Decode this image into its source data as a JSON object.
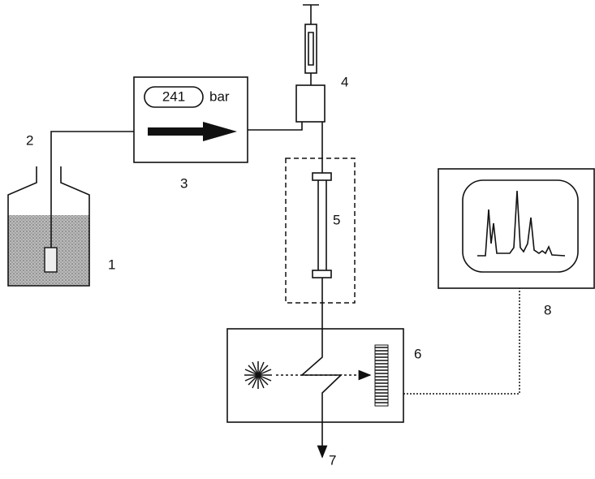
{
  "pump": {
    "display": "241",
    "unit": "bar"
  },
  "labels": {
    "reservoir": "1",
    "inlet_tube": "2",
    "pump": "3",
    "injector": "4",
    "column": "5",
    "detector": "6",
    "outlet": "7",
    "recorder": "8"
  }
}
